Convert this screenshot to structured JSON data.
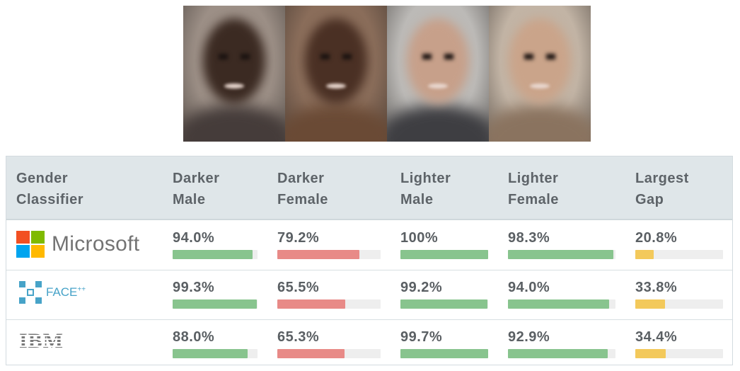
{
  "faces": [
    {
      "name": "darker-male-face",
      "bg": "#9c8f86",
      "skin": "#3b2a22",
      "body": "#453c3a"
    },
    {
      "name": "darker-female-face",
      "bg": "#8a6d5a",
      "skin": "#4a3024",
      "body": "#6a4a35"
    },
    {
      "name": "lighter-male-face",
      "bg": "#bcbab7",
      "skin": "#c7a08a",
      "body": "#3e3e42"
    },
    {
      "name": "lighter-female-face",
      "bg": "#c2b4a5",
      "skin": "#caa48a",
      "body": "#8a735f"
    }
  ],
  "table": {
    "headers": [
      {
        "line1": "Gender",
        "line2": "Classifier"
      },
      {
        "line1": "Darker",
        "line2": "Male"
      },
      {
        "line1": "Darker",
        "line2": "Female"
      },
      {
        "line1": "Lighter",
        "line2": "Male"
      },
      {
        "line1": "Lighter",
        "line2": "Female"
      },
      {
        "line1": "Largest",
        "line2": "Gap"
      }
    ],
    "rows": [
      {
        "classifier": "Microsoft",
        "values": [
          "94.0%",
          "79.2%",
          "100%",
          "98.3%",
          "20.8%"
        ],
        "fractions": [
          0.94,
          0.792,
          1.0,
          0.983,
          0.208
        ]
      },
      {
        "classifier": "FACE",
        "classifier_sup": "++",
        "values": [
          "99.3%",
          "65.5%",
          "99.2%",
          "94.0%",
          "33.8%"
        ],
        "fractions": [
          0.993,
          0.655,
          0.992,
          0.94,
          0.338
        ]
      },
      {
        "classifier": "IBM",
        "values": [
          "88.0%",
          "65.3%",
          "99.7%",
          "92.9%",
          "34.4%"
        ],
        "fractions": [
          0.88,
          0.653,
          0.997,
          0.929,
          0.344
        ]
      }
    ]
  },
  "colors": {
    "green": "#88c48e",
    "red": "#e88a87",
    "yellow": "#f3c95b",
    "track": "#eeeeee",
    "ms_red": "#f25022",
    "ms_green": "#7fba00",
    "ms_blue": "#00a4ef",
    "ms_yellow": "#ffb900",
    "face_blue": "#47a3c8"
  }
}
